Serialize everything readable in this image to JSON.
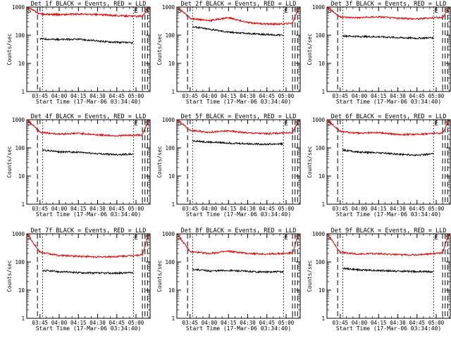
{
  "xlabel": "Start Time (17-Mar-06 03:34:40)",
  "ylabel": "Counts/sec",
  "x_tick_labels": [
    "03:45",
    "04:00",
    "04:15",
    "04:30",
    "04:45",
    "05:00"
  ],
  "y_tick_labels": [
    "1",
    "10",
    "100",
    "1000"
  ],
  "marker_labels": {
    "saa_start": "S",
    "saa_end": "S",
    "eclipse": "E"
  },
  "colors": {
    "events": "#000000",
    "lld": "#e00000"
  },
  "chart_data": [
    {
      "type": "line",
      "title": "Det 1f BLACK = Events, RED = LLD",
      "xlabel": "Start Time (17-Mar-06 03:34:40)",
      "ylabel": "Counts/sec",
      "y_scale": "log",
      "ylim": [
        1,
        1000
      ],
      "xlim": [
        "03:34:40",
        "05:11"
      ],
      "series": [
        {
          "name": "Events",
          "color": "#000000",
          "x": [
            "03:45",
            "04:00",
            "04:15",
            "04:30",
            "04:45",
            "04:58"
          ],
          "y": [
            75,
            70,
            72,
            62,
            56,
            53
          ]
        },
        {
          "name": "LLD",
          "color": "#e00000",
          "x": [
            "03:35",
            "03:45",
            "04:00",
            "04:15",
            "04:30",
            "04:45",
            "04:58",
            "05:05",
            "05:10"
          ],
          "y": [
            1000,
            560,
            540,
            560,
            540,
            500,
            470,
            470,
            1000
          ]
        }
      ],
      "vertical_markers": {
        "dashed": [
          "03:43",
          "05:05"
        ],
        "dotted": [
          "03:47",
          "04:58"
        ]
      }
    },
    {
      "type": "line",
      "title": "Det 2f BLACK = Events, RED = LLD",
      "xlabel": "Start Time (17-Mar-06 03:34:40)",
      "ylabel": "Counts/sec",
      "y_scale": "log",
      "ylim": [
        1,
        1000
      ],
      "xlim": [
        "03:34:40",
        "05:11"
      ],
      "series": [
        {
          "name": "Events",
          "color": "#000000",
          "x": [
            "03:47",
            "04:00",
            "04:15",
            "04:30",
            "04:45",
            "04:58"
          ],
          "y": [
            200,
            165,
            130,
            115,
            105,
            100
          ]
        },
        {
          "name": "LLD",
          "color": "#e00000",
          "x": [
            "03:35",
            "03:45",
            "04:00",
            "04:15",
            "04:30",
            "04:45",
            "04:58",
            "05:05",
            "05:10"
          ],
          "y": [
            1000,
            400,
            330,
            420,
            280,
            250,
            250,
            270,
            1000
          ]
        }
      ],
      "vertical_markers": {
        "dashed": [
          "03:43",
          "05:05"
        ],
        "dotted": [
          "03:47",
          "04:58"
        ]
      }
    },
    {
      "type": "line",
      "title": "Det 3f BLACK = Events, RED = LLD",
      "xlabel": "Start Time (17-Mar-06 03:34:40)",
      "ylabel": "Counts/sec",
      "y_scale": "log",
      "ylim": [
        1,
        1000
      ],
      "xlim": [
        "03:34:40",
        "05:11"
      ],
      "series": [
        {
          "name": "Events",
          "color": "#000000",
          "x": [
            "03:47",
            "04:00",
            "04:15",
            "04:30",
            "04:45",
            "04:58"
          ],
          "y": [
            95,
            90,
            88,
            82,
            78,
            82
          ]
        },
        {
          "name": "LLD",
          "color": "#e00000",
          "x": [
            "03:35",
            "03:45",
            "04:00",
            "04:15",
            "04:30",
            "04:45",
            "04:58",
            "05:05",
            "05:10"
          ],
          "y": [
            1000,
            440,
            420,
            450,
            400,
            380,
            420,
            420,
            1000
          ]
        }
      ],
      "vertical_markers": {
        "dashed": [
          "03:43",
          "05:05"
        ],
        "dotted": [
          "03:47",
          "04:58"
        ]
      }
    },
    {
      "type": "line",
      "title": "Det 4f BLACK = Events, RED = LLD",
      "xlabel": "Start Time (17-Mar-06 03:34:40)",
      "ylabel": "Counts/sec",
      "y_scale": "log",
      "ylim": [
        1,
        1000
      ],
      "xlim": [
        "03:34:40",
        "05:11"
      ],
      "series": [
        {
          "name": "Events",
          "color": "#000000",
          "x": [
            "03:47",
            "04:00",
            "04:15",
            "04:30",
            "04:45",
            "04:58"
          ],
          "y": [
            85,
            72,
            70,
            62,
            58,
            60
          ]
        },
        {
          "name": "LLD",
          "color": "#e00000",
          "x": [
            "03:35",
            "03:45",
            "04:00",
            "04:15",
            "04:30",
            "04:45",
            "04:58",
            "05:05",
            "05:10"
          ],
          "y": [
            1000,
            360,
            310,
            330,
            290,
            270,
            280,
            290,
            1000
          ]
        }
      ],
      "vertical_markers": {
        "dashed": [
          "03:43",
          "05:05"
        ],
        "dotted": [
          "03:47",
          "04:58"
        ]
      }
    },
    {
      "type": "line",
      "title": "Det 5f BLACK = Events, RED = LLD",
      "xlabel": "Start Time (17-Mar-06 03:34:40)",
      "ylabel": "Counts/sec",
      "y_scale": "log",
      "ylim": [
        1,
        1000
      ],
      "xlim": [
        "03:34:40",
        "05:11"
      ],
      "series": [
        {
          "name": "Events",
          "color": "#000000",
          "x": [
            "03:47",
            "04:00",
            "04:15",
            "04:30",
            "04:45",
            "04:58"
          ],
          "y": [
            180,
            160,
            150,
            140,
            135,
            140
          ]
        },
        {
          "name": "LLD",
          "color": "#e00000",
          "x": [
            "03:35",
            "03:45",
            "04:00",
            "04:15",
            "04:30",
            "04:45",
            "04:58",
            "05:05",
            "05:10"
          ],
          "y": [
            1000,
            420,
            360,
            400,
            340,
            320,
            340,
            340,
            1000
          ]
        }
      ],
      "vertical_markers": {
        "dashed": [
          "03:43",
          "05:05"
        ],
        "dotted": [
          "03:47",
          "04:58"
        ]
      }
    },
    {
      "type": "line",
      "title": "Det 6f BLACK = Events, RED = LLD",
      "xlabel": "Start Time (17-Mar-06 03:34:40)",
      "ylabel": "Counts/sec",
      "y_scale": "log",
      "ylim": [
        1,
        1000
      ],
      "xlim": [
        "03:34:40",
        "05:11"
      ],
      "series": [
        {
          "name": "Events",
          "color": "#000000",
          "x": [
            "03:47",
            "04:00",
            "04:15",
            "04:30",
            "04:45",
            "04:58"
          ],
          "y": [
            85,
            70,
            68,
            60,
            55,
            62
          ]
        },
        {
          "name": "LLD",
          "color": "#e00000",
          "x": [
            "03:35",
            "03:45",
            "04:00",
            "04:15",
            "04:30",
            "04:45",
            "04:58",
            "05:05",
            "05:10"
          ],
          "y": [
            1000,
            380,
            330,
            350,
            300,
            300,
            330,
            330,
            1000
          ]
        }
      ],
      "vertical_markers": {
        "dashed": [
          "03:43",
          "05:05"
        ],
        "dotted": [
          "03:47",
          "04:58"
        ]
      }
    },
    {
      "type": "line",
      "title": "Det 7f BLACK = Events, RED = LLD",
      "xlabel": "Start Time (17-Mar-06 03:34:40)",
      "ylabel": "Counts/sec",
      "y_scale": "log",
      "ylim": [
        1,
        1000
      ],
      "xlim": [
        "03:34:40",
        "05:11"
      ],
      "series": [
        {
          "name": "Events",
          "color": "#000000",
          "x": [
            "03:47",
            "04:00",
            "04:15",
            "04:30",
            "04:45",
            "04:58"
          ],
          "y": [
            50,
            45,
            42,
            40,
            40,
            42
          ]
        },
        {
          "name": "LLD",
          "color": "#e00000",
          "x": [
            "03:35",
            "03:45",
            "04:00",
            "04:15",
            "04:30",
            "04:45",
            "04:58",
            "05:05",
            "05:10"
          ],
          "y": [
            1000,
            220,
            170,
            160,
            150,
            155,
            170,
            180,
            1000
          ]
        }
      ],
      "vertical_markers": {
        "dashed": [
          "03:43",
          "05:05"
        ],
        "dotted": [
          "03:47",
          "04:58"
        ]
      }
    },
    {
      "type": "line",
      "title": "Det 8f BLACK = Events, RED = LLD",
      "xlabel": "Start Time (17-Mar-06 03:34:40)",
      "ylabel": "Counts/sec",
      "y_scale": "log",
      "ylim": [
        1,
        1000
      ],
      "xlim": [
        "03:34:40",
        "05:11"
      ],
      "series": [
        {
          "name": "Events",
          "color": "#000000",
          "x": [
            "03:47",
            "04:00",
            "04:15",
            "04:30",
            "04:45",
            "04:58"
          ],
          "y": [
            55,
            48,
            50,
            46,
            44,
            45
          ]
        },
        {
          "name": "LLD",
          "color": "#e00000",
          "x": [
            "03:35",
            "03:45",
            "04:00",
            "04:15",
            "04:30",
            "04:45",
            "04:58",
            "05:05",
            "05:10"
          ],
          "y": [
            1000,
            230,
            200,
            240,
            200,
            190,
            200,
            210,
            1000
          ]
        }
      ],
      "vertical_markers": {
        "dashed": [
          "03:43",
          "05:05"
        ],
        "dotted": [
          "03:47",
          "04:58"
        ]
      }
    },
    {
      "type": "line",
      "title": "Det 9f BLACK = Events, RED = LLD",
      "xlabel": "Start Time (17-Mar-06 03:34:40)",
      "ylabel": "Counts/sec",
      "y_scale": "log",
      "ylim": [
        1,
        1000
      ],
      "xlim": [
        "03:34:40",
        "05:11"
      ],
      "series": [
        {
          "name": "Events",
          "color": "#000000",
          "x": [
            "03:47",
            "04:00",
            "04:15",
            "04:30",
            "04:45",
            "04:58"
          ],
          "y": [
            60,
            52,
            50,
            47,
            46,
            45
          ]
        },
        {
          "name": "LLD",
          "color": "#e00000",
          "x": [
            "03:35",
            "03:45",
            "04:00",
            "04:15",
            "04:30",
            "04:45",
            "04:58",
            "05:05",
            "05:10"
          ],
          "y": [
            1000,
            220,
            190,
            200,
            180,
            180,
            200,
            210,
            1000
          ]
        }
      ],
      "vertical_markers": {
        "dashed": [
          "03:43",
          "05:05"
        ],
        "dotted": [
          "03:47",
          "04:58"
        ]
      }
    }
  ]
}
